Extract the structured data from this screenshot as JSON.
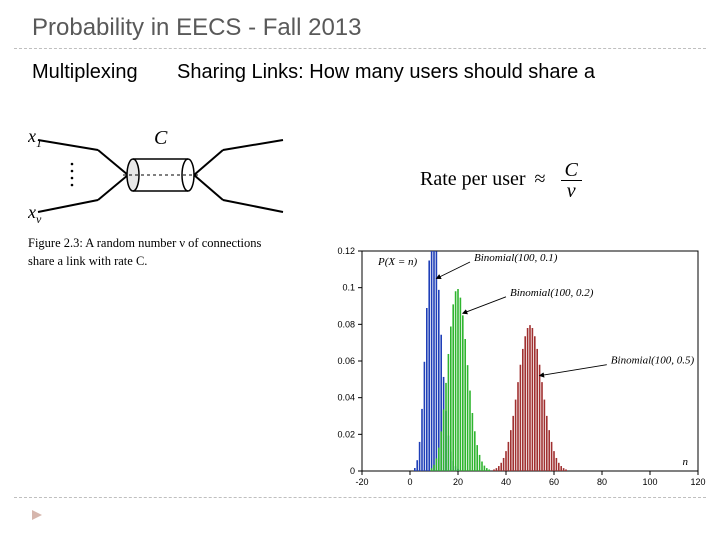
{
  "page": {
    "title": "Probability in EECS - Fall 2013",
    "section": "Multiplexing",
    "subtitle": "Sharing Links: How many users should share a"
  },
  "diagram": {
    "x_top": "x",
    "x_top_sub": "1",
    "x_bot": "x",
    "x_bot_sub": "ν",
    "C": "C",
    "caption_prefix": "Figure 2.3:",
    "caption_rest": " A random number ν of connections share a link with rate C.",
    "line_color": "#000000",
    "cylinder_fill": "#e8e8e8"
  },
  "formula": {
    "label": "Rate per user",
    "approx": "≈",
    "num": "C",
    "den": "ν"
  },
  "chart": {
    "type": "bar",
    "xlim": [
      -20,
      120
    ],
    "ylim": [
      0,
      0.12
    ],
    "xticks": [
      -20,
      0,
      20,
      40,
      60,
      80,
      100,
      120
    ],
    "yticks": [
      0,
      0.02,
      0.04,
      0.06,
      0.08,
      0.1,
      0.12
    ],
    "y_axis_label": "P(X = n)",
    "x_axis_label": "n",
    "background": "#ffffff",
    "axis_color": "#000000",
    "series": [
      {
        "label": "Binomial(100, 0.1)",
        "color": "#1f3fb8",
        "dist": {
          "n": 100,
          "p": 0.1
        },
        "arrow_from": [
          25,
          0.114
        ],
        "arrow_to": [
          11,
          0.105
        ]
      },
      {
        "label": "Binomial(100, 0.2)",
        "color": "#2fb52f",
        "dist": {
          "n": 100,
          "p": 0.2
        },
        "arrow_from": [
          40,
          0.095
        ],
        "arrow_to": [
          22,
          0.086
        ]
      },
      {
        "label": "Binomial(100, 0.5)",
        "color": "#a03030",
        "dist": {
          "n": 100,
          "p": 0.5
        },
        "arrow_from": [
          82,
          0.058
        ],
        "arrow_to": [
          54,
          0.052
        ]
      }
    ]
  }
}
